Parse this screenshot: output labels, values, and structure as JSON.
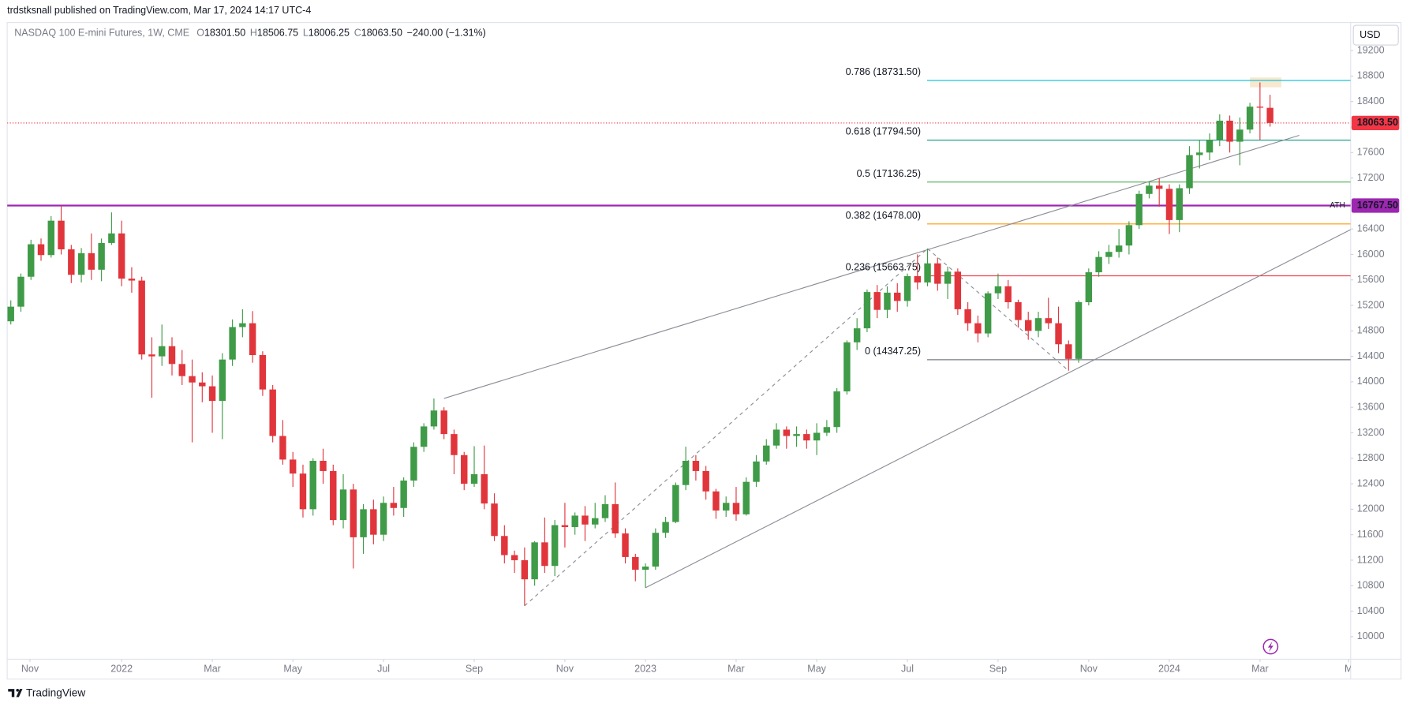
{
  "header": {
    "published": "trdstksnall published on TradingView.com, Mar 17, 2024 14:17 UTC-4",
    "brand": "TradingView"
  },
  "chart_data": {
    "type": "candlestick",
    "title": "NASDAQ 100 E-mini Futures, 1W, CME",
    "ohlc_legend": [
      {
        "key": "O",
        "text": "18301.50"
      },
      {
        "key": "H",
        "text": "18506.75"
      },
      {
        "key": "L",
        "text": "18006.25"
      },
      {
        "key": "C",
        "text": "18063.50"
      }
    ],
    "change": "−240.00 (−1.31%)",
    "currency": "USD",
    "up_color": "#3f9b47",
    "down_color": "#e1353c",
    "open": [
      14950,
      15180,
      15650,
      16160,
      15990,
      16530,
      16080,
      15680,
      16020,
      15760,
      16180,
      16330,
      15620,
      15590,
      14430,
      14400,
      14560,
      14280,
      14090,
      13990,
      13930,
      13700,
      14350,
      14860,
      14920,
      14420,
      13880,
      13150,
      12780,
      12560,
      12000,
      12760,
      12600,
      11830,
      12310,
      11560,
      12000,
      11600,
      12100,
      12020,
      12450,
      12980,
      13300,
      13550,
      13180,
      12850,
      12400,
      12550,
      12090,
      11580,
      11280,
      11200,
      10900,
      11480,
      11110,
      11750,
      11720,
      11900,
      11760,
      11860,
      12080,
      11620,
      11250,
      11050,
      11100,
      11630,
      11800,
      12380,
      12760,
      12600,
      12280,
      11980,
      12100,
      11920,
      12430,
      12750,
      13000,
      13250,
      13150,
      13180,
      13080,
      13200,
      13290,
      13850,
      14620,
      14840,
      15410,
      15130,
      15400,
      15270,
      15660,
      15560,
      15860,
      15540,
      15730,
      15140,
      14920,
      14760,
      15390,
      15500,
      15250,
      14970,
      14800,
      15000,
      14920,
      14590,
      14360,
      15250,
      15720,
      15960,
      16040,
      16140,
      16460,
      16950,
      17080,
      17030,
      16540,
      17040,
      17560,
      17600,
      17800,
      18100,
      17770,
      17960,
      18320,
      18301.5
    ],
    "high": [
      15280,
      15700,
      16230,
      16250,
      16600,
      16767.5,
      16150,
      16100,
      16330,
      16250,
      16660,
      16530,
      15800,
      15650,
      14700,
      14900,
      14700,
      14500,
      14350,
      14150,
      14100,
      14450,
      14980,
      15140,
      15110,
      14480,
      13950,
      13400,
      12900,
      12700,
      12800,
      12950,
      12700,
      12550,
      12400,
      12080,
      12150,
      12200,
      12350,
      12500,
      13050,
      13350,
      13740,
      13600,
      13250,
      12900,
      12990,
      13000,
      12250,
      11750,
      11350,
      11400,
      11500,
      11870,
      11830,
      12100,
      11950,
      12050,
      12100,
      12220,
      12420,
      11700,
      11300,
      11150,
      11700,
      11880,
      12420,
      12982,
      12850,
      12680,
      12320,
      12200,
      12350,
      12500,
      12850,
      13100,
      13350,
      13300,
      13300,
      13250,
      13350,
      13400,
      13900,
      14650,
      15000,
      15450,
      15520,
      15500,
      15550,
      15700,
      16000,
      16092,
      15950,
      15810,
      15780,
      15250,
      15040,
      15420,
      15700,
      15600,
      15290,
      15100,
      15100,
      15320,
      15180,
      14650,
      15280,
      15780,
      16050,
      16150,
      16400,
      16520,
      17000,
      17150,
      17200,
      17100,
      17100,
      17700,
      17800,
      17900,
      18200,
      18180,
      18150,
      18380,
      18700,
      18506.75
    ],
    "low": [
      14900,
      15100,
      15600,
      15900,
      15950,
      16000,
      15550,
      15560,
      15600,
      15580,
      16150,
      15500,
      15400,
      14350,
      13750,
      14250,
      14100,
      13950,
      13050,
      13680,
      13200,
      13100,
      14250,
      14700,
      14300,
      13780,
      13050,
      12700,
      12350,
      11870,
      11900,
      12400,
      11750,
      11700,
      11070,
      11300,
      11450,
      11500,
      11900,
      11880,
      12350,
      12900,
      13250,
      13100,
      12550,
      12300,
      12350,
      12000,
      11500,
      11150,
      11000,
      10484,
      10800,
      11000,
      10950,
      11400,
      11600,
      11500,
      11700,
      11800,
      11550,
      11150,
      10870,
      10767,
      11050,
      11550,
      11780,
      12300,
      12450,
      12150,
      11850,
      11880,
      11820,
      11900,
      12350,
      12700,
      12950,
      12950,
      12980,
      12950,
      12850,
      13150,
      13200,
      13800,
      14500,
      14780,
      15000,
      15000,
      15100,
      15180,
      15450,
      15500,
      15430,
      15300,
      15050,
      14800,
      14620,
      14700,
      15300,
      15150,
      14850,
      14660,
      14700,
      14830,
      14450,
      14175,
      14300,
      15200,
      15650,
      15850,
      15950,
      16000,
      16400,
      16880,
      16750,
      16320,
      16350,
      16950,
      17350,
      17480,
      17700,
      17600,
      17400,
      17900,
      17800,
      18006.25
    ],
    "close": [
      15180,
      15650,
      16160,
      15990,
      16530,
      16080,
      15680,
      16020,
      15760,
      16180,
      16330,
      15620,
      15590,
      14430,
      14400,
      14560,
      14280,
      14090,
      13990,
      13930,
      13700,
      14350,
      14860,
      14920,
      14420,
      13880,
      13150,
      12780,
      12560,
      12000,
      12760,
      12600,
      11830,
      12310,
      11560,
      12000,
      11600,
      12100,
      12020,
      12450,
      12980,
      13300,
      13550,
      13180,
      12850,
      12400,
      12550,
      12090,
      11580,
      11280,
      11200,
      10900,
      11480,
      11110,
      11750,
      11720,
      11900,
      11760,
      11860,
      12080,
      11620,
      11250,
      11050,
      11100,
      11630,
      11800,
      12380,
      12760,
      12600,
      12280,
      11980,
      12100,
      11920,
      12430,
      12750,
      13000,
      13250,
      13150,
      13180,
      13080,
      13200,
      13290,
      13850,
      14620,
      14840,
      15410,
      15130,
      15400,
      15270,
      15660,
      15560,
      15860,
      15540,
      15730,
      15140,
      14920,
      14760,
      15390,
      15500,
      15250,
      14970,
      14800,
      15000,
      14920,
      14590,
      14360,
      15250,
      15720,
      15960,
      16040,
      16140,
      16460,
      16950,
      17080,
      17030,
      16540,
      17040,
      17560,
      17600,
      17800,
      18100,
      17770,
      17960,
      18320,
      18303.5,
      18063.5
    ],
    "xlim": [
      -0.36,
      133
    ],
    "xticks": [
      {
        "value": 1.9,
        "label": "Nov"
      },
      {
        "value": 11,
        "label": "2022"
      },
      {
        "value": 20,
        "label": "Mar"
      },
      {
        "value": 28,
        "label": "May"
      },
      {
        "value": 37,
        "label": "Jul"
      },
      {
        "value": 46,
        "label": "Sep"
      },
      {
        "value": 55,
        "label": "Nov"
      },
      {
        "value": 63,
        "label": "2023"
      },
      {
        "value": 72,
        "label": "Mar"
      },
      {
        "value": 80,
        "label": "May"
      },
      {
        "value": 89,
        "label": "Jul"
      },
      {
        "value": 98,
        "label": "Sep"
      },
      {
        "value": 107,
        "label": "Nov"
      },
      {
        "value": 115,
        "label": "2024"
      },
      {
        "value": 124,
        "label": "Mar"
      },
      {
        "value": 132.8,
        "label": "M"
      }
    ],
    "ylim": [
      9645,
      19640
    ],
    "yticks": [
      10000,
      10400,
      10800,
      11200,
      11600,
      12000,
      12400,
      12800,
      13200,
      13600,
      14000,
      14400,
      14800,
      15200,
      15600,
      16000,
      16400,
      16800,
      17200,
      17600,
      18000,
      18400,
      18800,
      19200
    ],
    "last_price": {
      "value": 18063.5,
      "label": "18063.50",
      "color": "#f23645"
    },
    "ath": {
      "name": "ATH",
      "value": 16767.5,
      "label": "16767.50",
      "color": "#9c27b0"
    },
    "fib_levels": [
      {
        "label": "0.786 (18731.50)",
        "value": 18731.5,
        "color": "#00bcd4"
      },
      {
        "label": "0.618 (17794.50)",
        "value": 17794.5,
        "color": "#089981"
      },
      {
        "label": "0.5 (17136.25)",
        "value": 17136.25,
        "color": "#4caf50"
      },
      {
        "label": "0.382 (16478.00)",
        "value": 16478,
        "color": "#ff9800"
      },
      {
        "label": "0.236 (15663.75)",
        "value": 15663.75,
        "color": "#f23645"
      },
      {
        "label": "0 (14347.25)",
        "value": 14347.25,
        "color": "#787b86"
      }
    ],
    "trendlines": [
      {
        "points": [
          [
            43,
            13740
          ],
          [
            127.9,
            17870
          ]
        ],
        "dashed": false
      },
      {
        "points": [
          [
            63,
            10767
          ],
          [
            133,
            16390
          ]
        ],
        "dashed": false
      },
      {
        "points": [
          [
            51,
            10484
          ],
          [
            91,
            16092
          ]
        ],
        "dashed": true
      },
      {
        "points": [
          [
            91,
            16092
          ],
          [
            105,
            14175
          ]
        ],
        "dashed": true
      }
    ]
  }
}
